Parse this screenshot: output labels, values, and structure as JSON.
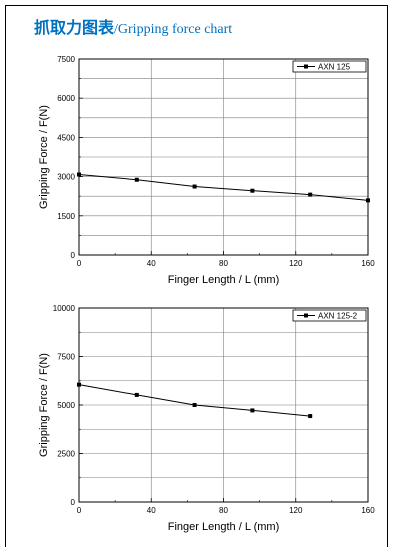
{
  "page_title": {
    "cn": "抓取力图表",
    "en": "/Gripping force chart"
  },
  "chart_data": [
    {
      "type": "line",
      "x": [
        0,
        32,
        64,
        96,
        128,
        160
      ],
      "series": [
        {
          "name": "AXN 125",
          "values": [
            3080,
            2880,
            2620,
            2460,
            2310,
            2090
          ]
        }
      ],
      "xlabel": "Finger Length / L (mm)",
      "ylabel": "Gripping Force / F(N)",
      "xlim": [
        0,
        160
      ],
      "ylim": [
        0,
        7500
      ],
      "xticks": [
        0,
        40,
        80,
        120,
        160
      ],
      "yticks": [
        0,
        1500,
        3000,
        4500,
        6000,
        7500
      ],
      "grid": true,
      "legend": "top-right",
      "marker": "square"
    },
    {
      "type": "line",
      "x": [
        0,
        32,
        64,
        96,
        128
      ],
      "series": [
        {
          "name": "AXN 125-2",
          "values": [
            6050,
            5520,
            5000,
            4720,
            4430
          ]
        }
      ],
      "xlabel": "Finger Length / L (mm)",
      "ylabel": "Gripping Force / F(N)",
      "xlim": [
        0,
        160
      ],
      "ylim": [
        0,
        10000
      ],
      "xticks": [
        0,
        40,
        80,
        120,
        160
      ],
      "yticks": [
        0,
        2500,
        5000,
        7500,
        10000
      ],
      "grid": true,
      "legend": "top-right",
      "marker": "square"
    }
  ]
}
